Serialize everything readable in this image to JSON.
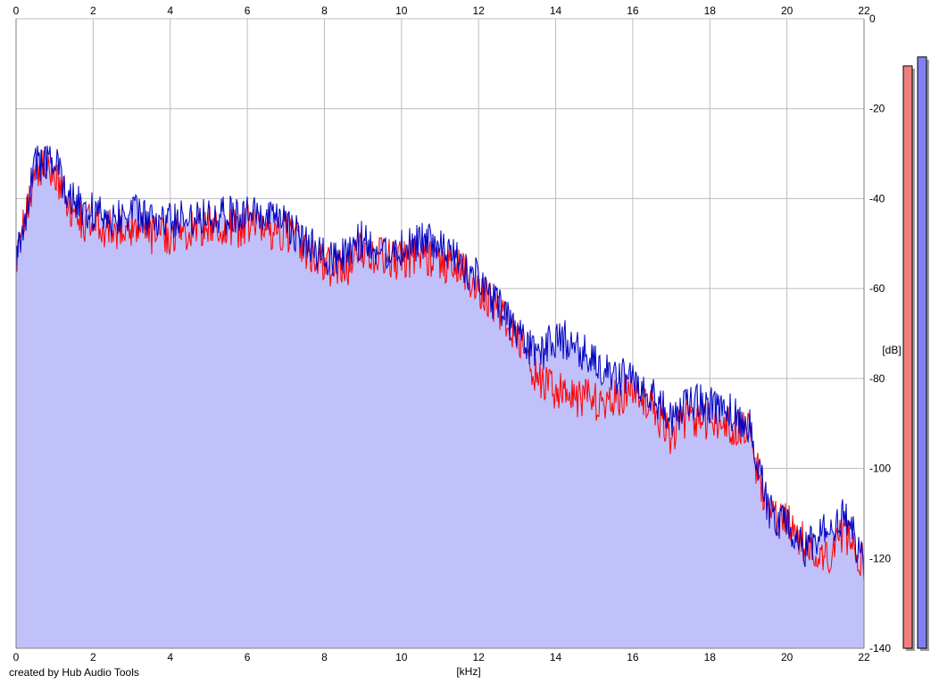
{
  "credit": "created by Hub Audio Tools",
  "colors": {
    "background": "#ffffff",
    "fill": "#c0c0fa",
    "grid": "#bcbcbc",
    "left_line": "#ff0000",
    "right_line": "#0000c0",
    "left_meter": "#f08080",
    "right_meter": "#8080f0",
    "meter_shadow": "#a0a0a0"
  },
  "chart_data": {
    "type": "line",
    "title": "",
    "xlabel": "[kHz]",
    "ylabel": "[dB]",
    "xlim": [
      0,
      22
    ],
    "ylim": [
      -140,
      0
    ],
    "x_ticks": [
      "0",
      "2",
      "4",
      "6",
      "8",
      "10",
      "12",
      "14",
      "16",
      "18",
      "20",
      "22"
    ],
    "y_ticks": [
      "0",
      "-20",
      "-40",
      "-60",
      "-80",
      "-100",
      "-120",
      "-140"
    ],
    "grid": true,
    "x": [
      0,
      0.5,
      1,
      1.5,
      2,
      2.5,
      3,
      3.5,
      4,
      4.5,
      5,
      5.5,
      6,
      6.5,
      7,
      7.5,
      8,
      8.5,
      9,
      9.5,
      10,
      10.5,
      11,
      11.5,
      12,
      12.5,
      13,
      13.5,
      14,
      14.5,
      15,
      15.5,
      16,
      16.5,
      17,
      17.5,
      18,
      18.5,
      19,
      19.5,
      20,
      20.5,
      21,
      21.5,
      22
    ],
    "series": [
      {
        "values": [
          -55,
          -33,
          -34,
          -44,
          -46,
          -47,
          -46,
          -48,
          -48,
          -47,
          -46,
          -47,
          -46,
          -47,
          -47,
          -51,
          -55,
          -56,
          -51,
          -53,
          -54,
          -52,
          -54,
          -55,
          -60,
          -64,
          -71,
          -80,
          -83,
          -84,
          -85,
          -85,
          -82,
          -86,
          -93,
          -88,
          -90,
          -91,
          -92,
          -110,
          -112,
          -117,
          -120,
          -114,
          -121
        ]
      },
      {
        "values": [
          -54,
          -32,
          -32,
          -41,
          -43,
          -44,
          -43,
          -45,
          -45,
          -44,
          -43,
          -44,
          -43,
          -45,
          -45,
          -50,
          -53,
          -53,
          -49,
          -52,
          -51,
          -49,
          -51,
          -54,
          -58,
          -64,
          -70,
          -75,
          -71,
          -72,
          -77,
          -79,
          -80,
          -83,
          -90,
          -85,
          -86,
          -87,
          -90,
          -109,
          -113,
          -118,
          -114,
          -111,
          -120
        ]
      }
    ],
    "meters": {
      "left_level_db": -10.5,
      "right_level_db": -8.5
    }
  }
}
